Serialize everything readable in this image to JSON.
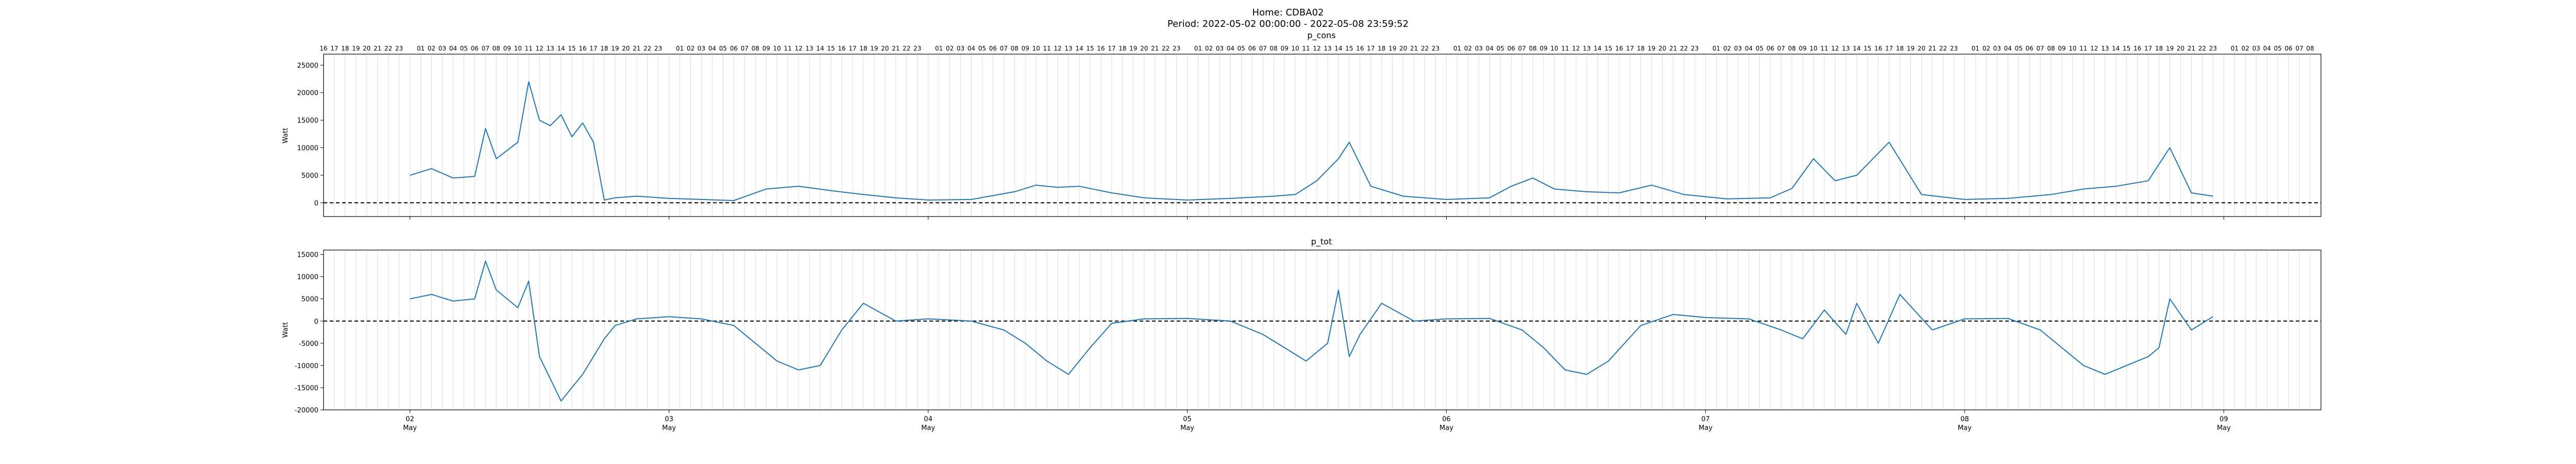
{
  "suptitle": {
    "home": "Home: CDBA02",
    "period": "Period: 2022-05-02 00:00:00 - 2022-05-08 23:59:52"
  },
  "chart_data": [
    {
      "type": "line",
      "title": "p_cons",
      "ylabel": "Watt",
      "xlabel": "",
      "ylim": [
        -2500,
        27000
      ],
      "yticks": [
        0,
        5000,
        10000,
        15000,
        20000,
        25000
      ],
      "xlim": [
        "2022-05-01 16:00",
        "2022-05-09 09:00"
      ],
      "grid": "vertical hourly lines",
      "zero_line": "dashed",
      "color": "#1f77b4",
      "series": [
        {
          "x": [
            "2022-05-02 00:00",
            "2022-05-02 02:00",
            "2022-05-02 04:00",
            "2022-05-02 06:00",
            "2022-05-02 07:00",
            "2022-05-02 08:00",
            "2022-05-02 10:00",
            "2022-05-02 11:00",
            "2022-05-02 12:00",
            "2022-05-02 13:00",
            "2022-05-02 14:00",
            "2022-05-02 15:00",
            "2022-05-02 16:00",
            "2022-05-02 17:00",
            "2022-05-02 18:00",
            "2022-05-02 19:00",
            "2022-05-02 21:00",
            "2022-05-03 00:00",
            "2022-05-03 03:00",
            "2022-05-03 06:00",
            "2022-05-03 09:00",
            "2022-05-03 12:00",
            "2022-05-03 15:00",
            "2022-05-03 18:00",
            "2022-05-03 21:00",
            "2022-05-04 00:00",
            "2022-05-04 04:00",
            "2022-05-04 08:00",
            "2022-05-04 10:00",
            "2022-05-04 12:00",
            "2022-05-04 14:00",
            "2022-05-04 17:00",
            "2022-05-04 20:00",
            "2022-05-05 00:00",
            "2022-05-05 04:00",
            "2022-05-05 08:00",
            "2022-05-05 10:00",
            "2022-05-05 12:00",
            "2022-05-05 14:00",
            "2022-05-05 15:00",
            "2022-05-05 17:00",
            "2022-05-05 20:00",
            "2022-05-06 00:00",
            "2022-05-06 04:00",
            "2022-05-06 06:00",
            "2022-05-06 08:00",
            "2022-05-06 10:00",
            "2022-05-06 13:00",
            "2022-05-06 16:00",
            "2022-05-06 19:00",
            "2022-05-06 22:00",
            "2022-05-07 02:00",
            "2022-05-07 06:00",
            "2022-05-07 08:00",
            "2022-05-07 10:00",
            "2022-05-07 12:00",
            "2022-05-07 14:00",
            "2022-05-07 17:00",
            "2022-05-07 20:00",
            "2022-05-08 00:00",
            "2022-05-08 04:00",
            "2022-05-08 08:00",
            "2022-05-08 11:00",
            "2022-05-08 14:00",
            "2022-05-08 17:00",
            "2022-05-08 19:00",
            "2022-05-08 21:00",
            "2022-05-08 23:00"
          ],
          "y": [
            5000,
            6200,
            4500,
            4800,
            13500,
            8000,
            11000,
            22000,
            15000,
            14000,
            16000,
            12000,
            14500,
            11000,
            500,
            900,
            1200,
            800,
            600,
            400,
            2500,
            3000,
            2200,
            1500,
            900,
            500,
            600,
            2000,
            3200,
            2800,
            3000,
            1800,
            900,
            500,
            800,
            1200,
            1500,
            4000,
            8000,
            11000,
            3000,
            1200,
            600,
            900,
            3000,
            4500,
            2500,
            2000,
            1800,
            3200,
            1500,
            700,
            900,
            2600,
            8000,
            4000,
            5000,
            11000,
            1500,
            600,
            800,
            1500,
            2500,
            3000,
            4000,
            10000,
            1800,
            1200
          ]
        }
      ]
    },
    {
      "type": "line",
      "title": "p_tot",
      "ylabel": "Watt",
      "xlabel": "",
      "ylim": [
        -20000,
        16000
      ],
      "yticks": [
        -20000,
        -15000,
        -10000,
        -5000,
        0,
        5000,
        10000,
        15000
      ],
      "xlim": [
        "2022-05-01 16:00",
        "2022-05-09 09:00"
      ],
      "grid": "vertical hourly lines",
      "zero_line": "dashed",
      "color": "#1f77b4",
      "series": [
        {
          "x": [
            "2022-05-02 00:00",
            "2022-05-02 02:00",
            "2022-05-02 04:00",
            "2022-05-02 06:00",
            "2022-05-02 07:00",
            "2022-05-02 08:00",
            "2022-05-02 10:00",
            "2022-05-02 11:00",
            "2022-05-02 12:00",
            "2022-05-02 13:00",
            "2022-05-02 14:00",
            "2022-05-02 15:00",
            "2022-05-02 16:00",
            "2022-05-02 17:00",
            "2022-05-02 18:00",
            "2022-05-02 19:00",
            "2022-05-02 21:00",
            "2022-05-03 00:00",
            "2022-05-03 03:00",
            "2022-05-03 06:00",
            "2022-05-03 08:00",
            "2022-05-03 10:00",
            "2022-05-03 12:00",
            "2022-05-03 14:00",
            "2022-05-03 15:00",
            "2022-05-03 16:00",
            "2022-05-03 18:00",
            "2022-05-03 21:00",
            "2022-05-04 00:00",
            "2022-05-04 04:00",
            "2022-05-04 07:00",
            "2022-05-04 09:00",
            "2022-05-04 11:00",
            "2022-05-04 13:00",
            "2022-05-04 15:00",
            "2022-05-04 17:00",
            "2022-05-04 20:00",
            "2022-05-05 00:00",
            "2022-05-05 04:00",
            "2022-05-05 07:00",
            "2022-05-05 09:00",
            "2022-05-05 11:00",
            "2022-05-05 13:00",
            "2022-05-05 14:00",
            "2022-05-05 15:00",
            "2022-05-05 16:00",
            "2022-05-05 18:00",
            "2022-05-05 21:00",
            "2022-05-06 00:00",
            "2022-05-06 04:00",
            "2022-05-06 07:00",
            "2022-05-06 09:00",
            "2022-05-06 11:00",
            "2022-05-06 13:00",
            "2022-05-06 15:00",
            "2022-05-06 18:00",
            "2022-05-06 21:00",
            "2022-05-07 00:00",
            "2022-05-07 04:00",
            "2022-05-07 07:00",
            "2022-05-07 09:00",
            "2022-05-07 11:00",
            "2022-05-07 13:00",
            "2022-05-07 14:00",
            "2022-05-07 16:00",
            "2022-05-07 18:00",
            "2022-05-07 21:00",
            "2022-05-08 00:00",
            "2022-05-08 04:00",
            "2022-05-08 07:00",
            "2022-05-08 09:00",
            "2022-05-08 11:00",
            "2022-05-08 13:00",
            "2022-05-08 15:00",
            "2022-05-08 17:00",
            "2022-05-08 18:00",
            "2022-05-08 19:00",
            "2022-05-08 21:00",
            "2022-05-08 23:00"
          ],
          "y": [
            5000,
            6000,
            4500,
            5000,
            13500,
            7000,
            3000,
            9000,
            -8000,
            -13000,
            -18000,
            -15000,
            -12000,
            -8000,
            -4000,
            -1000,
            500,
            1000,
            500,
            -1000,
            -5000,
            -9000,
            -11000,
            -10000,
            -6000,
            -2000,
            4000,
            0,
            500,
            0,
            -2000,
            -5000,
            -9000,
            -12000,
            -6000,
            -500,
            500,
            600,
            0,
            -3000,
            -6000,
            -9000,
            -5000,
            7000,
            -8000,
            -3000,
            4000,
            0,
            500,
            600,
            -2000,
            -6000,
            -11000,
            -12000,
            -9000,
            -1000,
            1500,
            800,
            500,
            -2000,
            -4000,
            2500,
            -3000,
            4000,
            -5000,
            6000,
            -2000,
            500,
            600,
            -2000,
            -6000,
            -10000,
            -12000,
            -10000,
            -8000,
            -6000,
            5000,
            -2000,
            1000
          ]
        }
      ]
    }
  ],
  "axes": {
    "date_ticks": [
      {
        "day": "02",
        "month": "May",
        "x": "2022-05-02 00:00"
      },
      {
        "day": "03",
        "month": "May",
        "x": "2022-05-03 00:00"
      },
      {
        "day": "04",
        "month": "May",
        "x": "2022-05-04 00:00"
      },
      {
        "day": "05",
        "month": "May",
        "x": "2022-05-05 00:00"
      },
      {
        "day": "06",
        "month": "May",
        "x": "2022-05-06 00:00"
      },
      {
        "day": "07",
        "month": "May",
        "x": "2022-05-07 00:00"
      },
      {
        "day": "08",
        "month": "May",
        "x": "2022-05-08 00:00"
      },
      {
        "day": "09",
        "month": "May",
        "x": "2022-05-09 00:00"
      }
    ],
    "hour_labels": [
      "16",
      "17",
      "18",
      "19",
      "20",
      "21",
      "22",
      "23",
      "",
      "01",
      "02",
      "03",
      "04",
      "05",
      "06",
      "07",
      "08",
      "09",
      "10",
      "11",
      "12",
      "13",
      "14",
      "15",
      "16",
      "17",
      "18",
      "19",
      "20",
      "21",
      "22",
      "23",
      "",
      "01",
      "02",
      "03",
      "04",
      "05",
      "06",
      "07",
      "08",
      "09",
      "10",
      "11",
      "12",
      "13",
      "14",
      "15",
      "16",
      "17",
      "18",
      "19",
      "20",
      "21",
      "22",
      "23",
      "",
      "01",
      "02",
      "03",
      "04",
      "05",
      "06",
      "07",
      "08",
      "09",
      "10",
      "11",
      "12",
      "13",
      "14",
      "15",
      "16",
      "17",
      "18",
      "19",
      "20",
      "21",
      "22",
      "23",
      "",
      "01",
      "02",
      "03",
      "04",
      "05",
      "06",
      "07",
      "08",
      "09",
      "10",
      "11",
      "12",
      "13",
      "14",
      "15",
      "16",
      "17",
      "18",
      "19",
      "20",
      "21",
      "22",
      "23",
      "",
      "01",
      "02",
      "03",
      "04",
      "05",
      "06",
      "07",
      "08",
      "09",
      "10",
      "11",
      "12",
      "13",
      "14",
      "15",
      "16",
      "17",
      "18",
      "19",
      "20",
      "21",
      "22",
      "23",
      "",
      "01",
      "02",
      "03",
      "04",
      "05",
      "06",
      "07",
      "08",
      "09",
      "10",
      "11",
      "12",
      "13",
      "14",
      "15",
      "16",
      "17",
      "18",
      "19",
      "20",
      "21",
      "22",
      "23",
      "",
      "01",
      "02",
      "03",
      "04",
      "05",
      "06",
      "07",
      "08",
      "09",
      "10",
      "11",
      "12",
      "13",
      "14",
      "15",
      "16",
      "17",
      "18",
      "19",
      "20",
      "21",
      "22",
      "23",
      "",
      "01",
      "02",
      "03",
      "04",
      "05",
      "06",
      "07",
      "08"
    ]
  }
}
